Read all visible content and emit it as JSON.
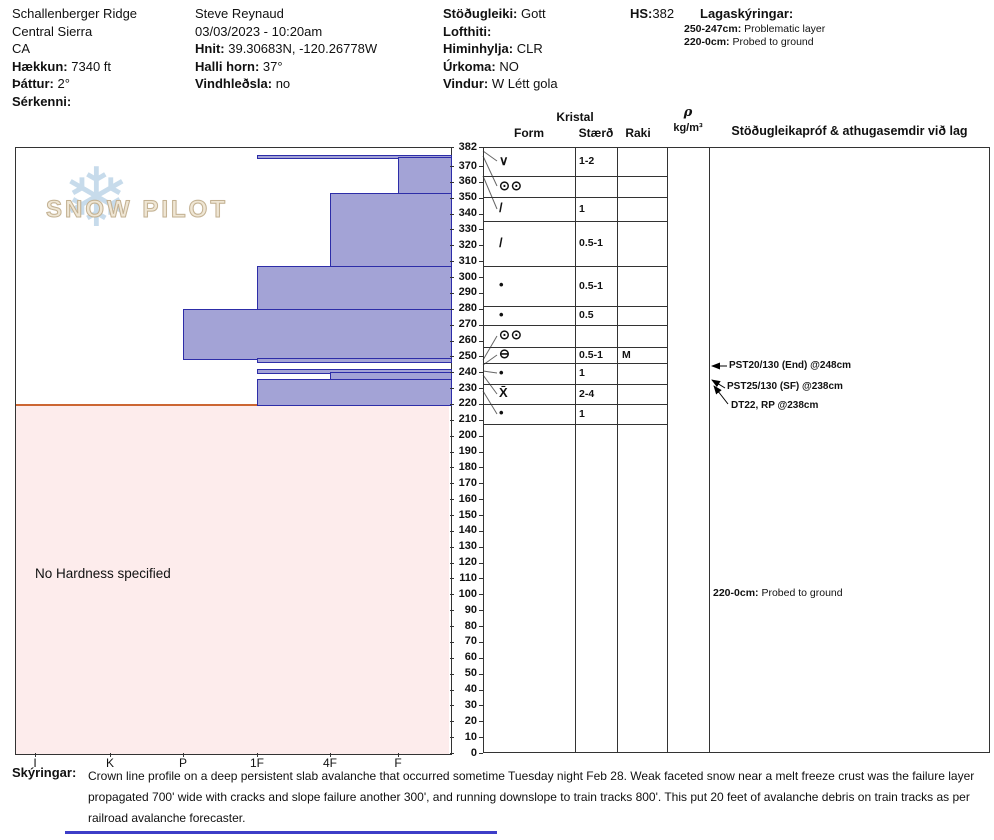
{
  "header": {
    "site": {
      "name": "Schallenberger Ridge",
      "region": "Central Sierra",
      "state": "CA",
      "elevation_label": "Hækkun:",
      "elevation_value": "7340 ft",
      "aspect_label": "Þáttur:",
      "aspect_value": "2°",
      "features_label": "Sérkenni:",
      "features_value": ""
    },
    "observer": {
      "name": "Steve Reynaud",
      "datetime": "03/03/2023 - 10:20am",
      "coords_label": "Hnit:",
      "coords_value": "39.30683N, -120.26778W",
      "slope_label": "Halli horn:",
      "slope_value": "37°",
      "windload_label": "Vindhleðsla:",
      "windload_value": "no"
    },
    "conditions": {
      "stability_label": "Stöðugleiki:",
      "stability_value": "Gott",
      "airtemp_label": "Lofthiti:",
      "airtemp_value": "",
      "sky_label": "Himinhylja:",
      "sky_value": "CLR",
      "precip_label": "Úrkoma:",
      "precip_value": "NO",
      "wind_label": "Vindur:",
      "wind_value": "W Létt gola"
    },
    "hs_label": "HS:",
    "hs_value": "382",
    "layer_notes": {
      "title": "Lagaskýringar:",
      "notes": [
        {
          "range": "250-247cm:",
          "text": "Problematic layer"
        },
        {
          "range": "220-0cm:",
          "text": "Probed to ground"
        }
      ]
    }
  },
  "table": {
    "kristal_header": "Kristal",
    "form_header": "Form",
    "size_header": "Stærð",
    "raki_header": "Raki",
    "rho_header": "ρ",
    "rho_units": "kg/m³",
    "comments_header": "Stöðugleikapróf & athugasemdir við lag"
  },
  "tests": [
    {
      "label": "PST20/130 (End) @248cm",
      "depth_cm": 248
    },
    {
      "label": "PST25/130 (SF) @238cm",
      "depth_cm": 238
    },
    {
      "label": "DT22, RP @238cm",
      "depth_cm": 238
    }
  ],
  "comments_note": {
    "range": "220-0cm:",
    "text": "Probed to ground"
  },
  "logo": {
    "text": "SNOW PILOT",
    "flake_icon": "❄"
  },
  "footer": {
    "label": "Skýringar:",
    "text": "Crown line profile on a deep persistent slab avalanche that occurred sometime Tuesday night Feb 28.  Weak faceted snow near a melt freeze crust was the failure layer propagated 700' wide with cracks and slope failure another 300', and running downslope to train tracks 800'.  This put 20 feet of avalanche debris on train tracks as per railroad avalanche forecaster."
  },
  "chart_data": {
    "type": "bar",
    "title": "Snow hardness profile (hand hardness vs depth)",
    "xlabel": "Hand hardness",
    "ylabel": "Depth (cm)",
    "hs_cm": 382,
    "depth_ticks": [
      382,
      370,
      360,
      350,
      340,
      330,
      320,
      310,
      300,
      290,
      280,
      270,
      260,
      250,
      240,
      230,
      220,
      210,
      200,
      190,
      180,
      170,
      160,
      150,
      140,
      130,
      120,
      110,
      100,
      90,
      80,
      70,
      60,
      50,
      40,
      30,
      20,
      10,
      0
    ],
    "hardness_scale": [
      "I",
      "K",
      "P",
      "1F",
      "4F",
      "F"
    ],
    "layers": [
      {
        "top_cm": 382,
        "bottom_cm": 377,
        "hardness": null,
        "form": "∨",
        "size_mm": "1-2",
        "raki": ""
      },
      {
        "top_cm": 377,
        "bottom_cm": 375.5,
        "hardness": "1F",
        "form": "⊙⊙",
        "size_mm": "",
        "raki": ""
      },
      {
        "top_cm": 375.5,
        "bottom_cm": 353,
        "hardness": "F",
        "form": "/",
        "size_mm": "1",
        "raki": ""
      },
      {
        "top_cm": 353,
        "bottom_cm": 307,
        "hardness": "4F",
        "form": "/",
        "size_mm": "0.5-1",
        "raki": ""
      },
      {
        "top_cm": 307,
        "bottom_cm": 280,
        "hardness": "1F",
        "form": "•",
        "size_mm": "0.5-1",
        "raki": ""
      },
      {
        "top_cm": 280,
        "bottom_cm": 249,
        "hardness": "P",
        "form": "•",
        "size_mm": "0.5",
        "raki": ""
      },
      {
        "top_cm": 249,
        "bottom_cm": 247,
        "hardness": "1F",
        "form": "⊙⊙",
        "size_mm": "",
        "raki": ""
      },
      {
        "top_cm": 247,
        "bottom_cm": 242,
        "hardness": null,
        "form": "⊖",
        "size_mm": "0.5-1",
        "raki": "M"
      },
      {
        "top_cm": 242,
        "bottom_cm": 240,
        "hardness": "1F",
        "form": "•",
        "size_mm": "1",
        "raki": ""
      },
      {
        "top_cm": 240,
        "bottom_cm": 236,
        "hardness": "4F",
        "form": "X̄",
        "size_mm": "2-4",
        "raki": ""
      },
      {
        "top_cm": 236,
        "bottom_cm": 220,
        "hardness": "1F",
        "form": "•",
        "size_mm": "1",
        "raki": ""
      }
    ],
    "no_hardness_region": {
      "top_cm": 220,
      "bottom_cm": 0,
      "label": "No Hardness specified"
    },
    "colors": {
      "bar_fill": "#a3a3d6",
      "bar_stroke": "#2d2da8",
      "no_hardness_fill": "#fdecec",
      "no_hardness_line": "#cc6633",
      "logo_flake": "#c7dbeb",
      "logo_text": "#efe6d4",
      "bottom_line": "#3d3dc8"
    }
  }
}
